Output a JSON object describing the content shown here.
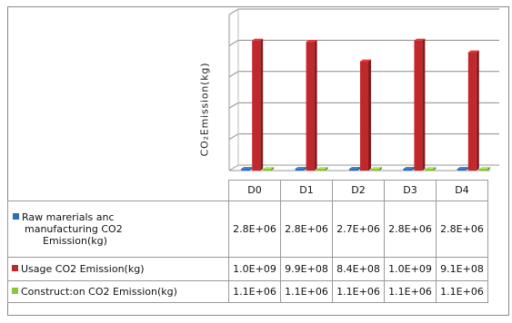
{
  "chart_data": {
    "type": "bar",
    "title": "",
    "ylabel": "CO₂Emission(kg)",
    "xlabel": "",
    "categories": [
      "D0",
      "D1",
      "D2",
      "D3",
      "D4"
    ],
    "ylim": [
      0,
      1200000000
    ],
    "grid": true,
    "legend": "data-table-left",
    "series": [
      {
        "name": "Raw marerials anc manufacturing CO2 Emission(kg)",
        "color": "#2f6db5",
        "values": [
          2800000,
          2800000,
          2700000,
          2800000,
          2800000
        ],
        "labels": [
          "2.8E+06",
          "2.8E+06",
          "2.7E+06",
          "2.8E+06",
          "2.8E+06"
        ]
      },
      {
        "name": "Usage CO2 Emission(kg)",
        "color": "#c0282b",
        "values": [
          1000000000,
          990000000,
          840000000,
          1000000000,
          910000000
        ],
        "labels": [
          "1.0E+09",
          "9.9E+08",
          "8.4E+08",
          "1.0E+09",
          "9.1E+08"
        ]
      },
      {
        "name": "Construction CO2 Emission(kg)",
        "color": "#8cc43c",
        "values": [
          1100000,
          1100000,
          1100000,
          1100000,
          1100000
        ],
        "labels": [
          "1.1E+06",
          "1.1E+06",
          "1.1E+06",
          "1.1E+06",
          "1.1E+06"
        ]
      }
    ],
    "legend_lines": {
      "s0": [
        "Raw marerials anc",
        "manufacturing CO2",
        "Emission(kg)"
      ],
      "s1": "Usage CO2 Emission(kg)",
      "s2": "Construct:on CO2 Emission(kg)"
    }
  }
}
